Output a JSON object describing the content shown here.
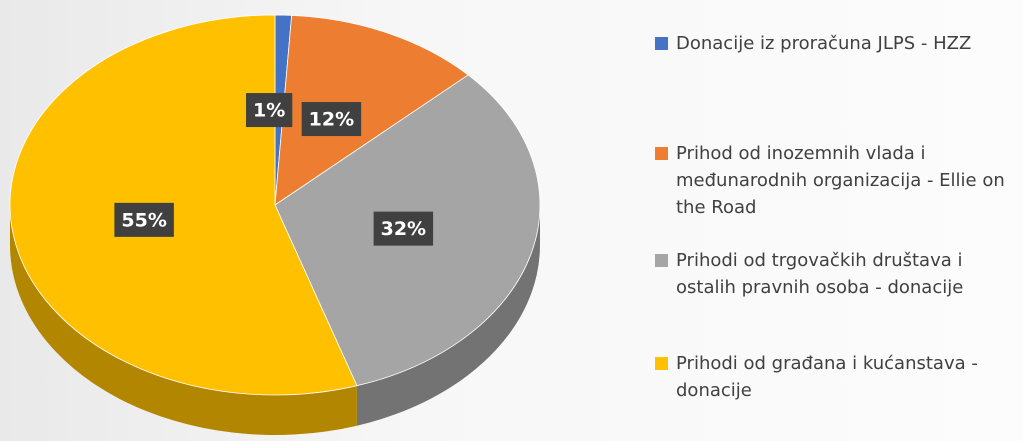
{
  "chart_data": {
    "type": "pie",
    "categories": [
      "Donacije iz proračuna JLPS - HZZ",
      "Prihod od inozemnih vlada i međunarodnih organizacija - Ellie on the Road",
      "Prihodi od trgovačkih društava i ostalih pravnih osoba - donacije",
      "Prihodi od građana i kućanstava - donacije"
    ],
    "values": [
      1,
      12,
      32,
      55
    ],
    "value_labels": [
      "1%",
      "12%",
      "32%",
      "55%"
    ],
    "colors": [
      "#4472c4",
      "#ed7d31",
      "#a5a5a5",
      "#ffc000"
    ],
    "legend": "right"
  }
}
